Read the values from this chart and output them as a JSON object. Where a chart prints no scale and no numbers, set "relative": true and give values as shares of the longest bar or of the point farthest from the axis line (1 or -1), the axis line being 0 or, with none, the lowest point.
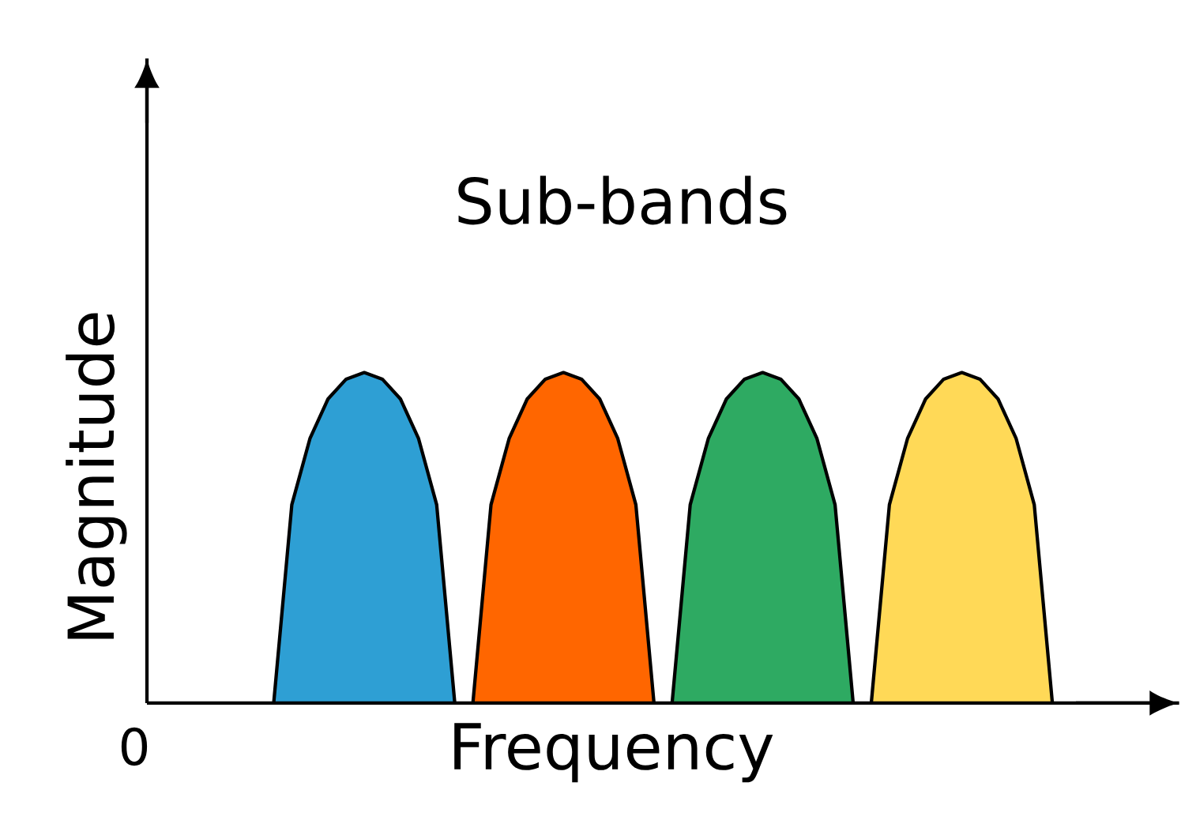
{
  "chart_data": {
    "type": "area",
    "title": "Sub-bands",
    "xlabel": "Frequency",
    "ylabel": "Magnitude",
    "relative": true,
    "annotations": [
      "0"
    ],
    "categories": [
      null,
      null,
      null,
      null,
      null,
      null,
      null,
      null,
      null,
      null,
      null,
      null,
      null,
      null,
      null,
      null,
      null,
      null,
      null,
      null,
      null,
      null,
      null,
      null,
      null,
      null,
      null,
      null,
      null,
      null,
      null,
      null,
      null,
      null,
      null,
      null,
      null,
      null,
      null,
      null,
      null,
      null,
      null,
      null,
      null,
      null,
      null,
      null,
      null,
      null,
      null
    ],
    "series": [
      {
        "color": "#2e9fd4",
        "values": [
          null,
          null,
          null,
          null,
          null,
          null,
          null,
          0,
          0.6,
          0.8,
          0.92,
          0.98,
          1,
          0.98,
          0.92,
          0.8,
          0.6,
          0,
          null,
          null,
          null,
          null,
          null,
          null,
          null,
          null,
          null,
          null,
          null,
          null,
          null,
          null,
          null,
          null,
          null,
          null,
          null,
          null,
          null,
          null,
          null,
          null,
          null,
          null,
          null,
          null,
          null,
          null,
          null,
          null,
          null
        ]
      },
      {
        "color": "#ff6600",
        "values": [
          null,
          null,
          null,
          null,
          null,
          null,
          null,
          null,
          null,
          null,
          null,
          null,
          null,
          null,
          null,
          null,
          null,
          null,
          0,
          0.6,
          0.8,
          0.92,
          0.98,
          1,
          0.98,
          0.92,
          0.8,
          0.6,
          0,
          null,
          null,
          null,
          null,
          null,
          null,
          null,
          null,
          null,
          null,
          null,
          null,
          null,
          null,
          null,
          null,
          null,
          null,
          null,
          null,
          null,
          null
        ]
      },
      {
        "color": "#2eaa62",
        "values": [
          null,
          null,
          null,
          null,
          null,
          null,
          null,
          null,
          null,
          null,
          null,
          null,
          null,
          null,
          null,
          null,
          null,
          null,
          null,
          null,
          null,
          null,
          null,
          null,
          null,
          null,
          null,
          null,
          null,
          0,
          0.6,
          0.8,
          0.92,
          0.98,
          1,
          0.98,
          0.92,
          0.8,
          0.6,
          0,
          null,
          null,
          null,
          null,
          null,
          null,
          null,
          null,
          null,
          null,
          null
        ]
      },
      {
        "color": "#ffd957",
        "values": [
          null,
          null,
          null,
          null,
          null,
          null,
          null,
          null,
          null,
          null,
          null,
          null,
          null,
          null,
          null,
          null,
          null,
          null,
          null,
          null,
          null,
          null,
          null,
          null,
          null,
          null,
          null,
          null,
          null,
          null,
          null,
          null,
          null,
          null,
          null,
          null,
          null,
          null,
          null,
          null,
          0,
          0.6,
          0.8,
          0.92,
          0.98,
          1,
          0.98,
          0.92,
          0.8,
          0.6,
          0
        ]
      }
    ]
  }
}
